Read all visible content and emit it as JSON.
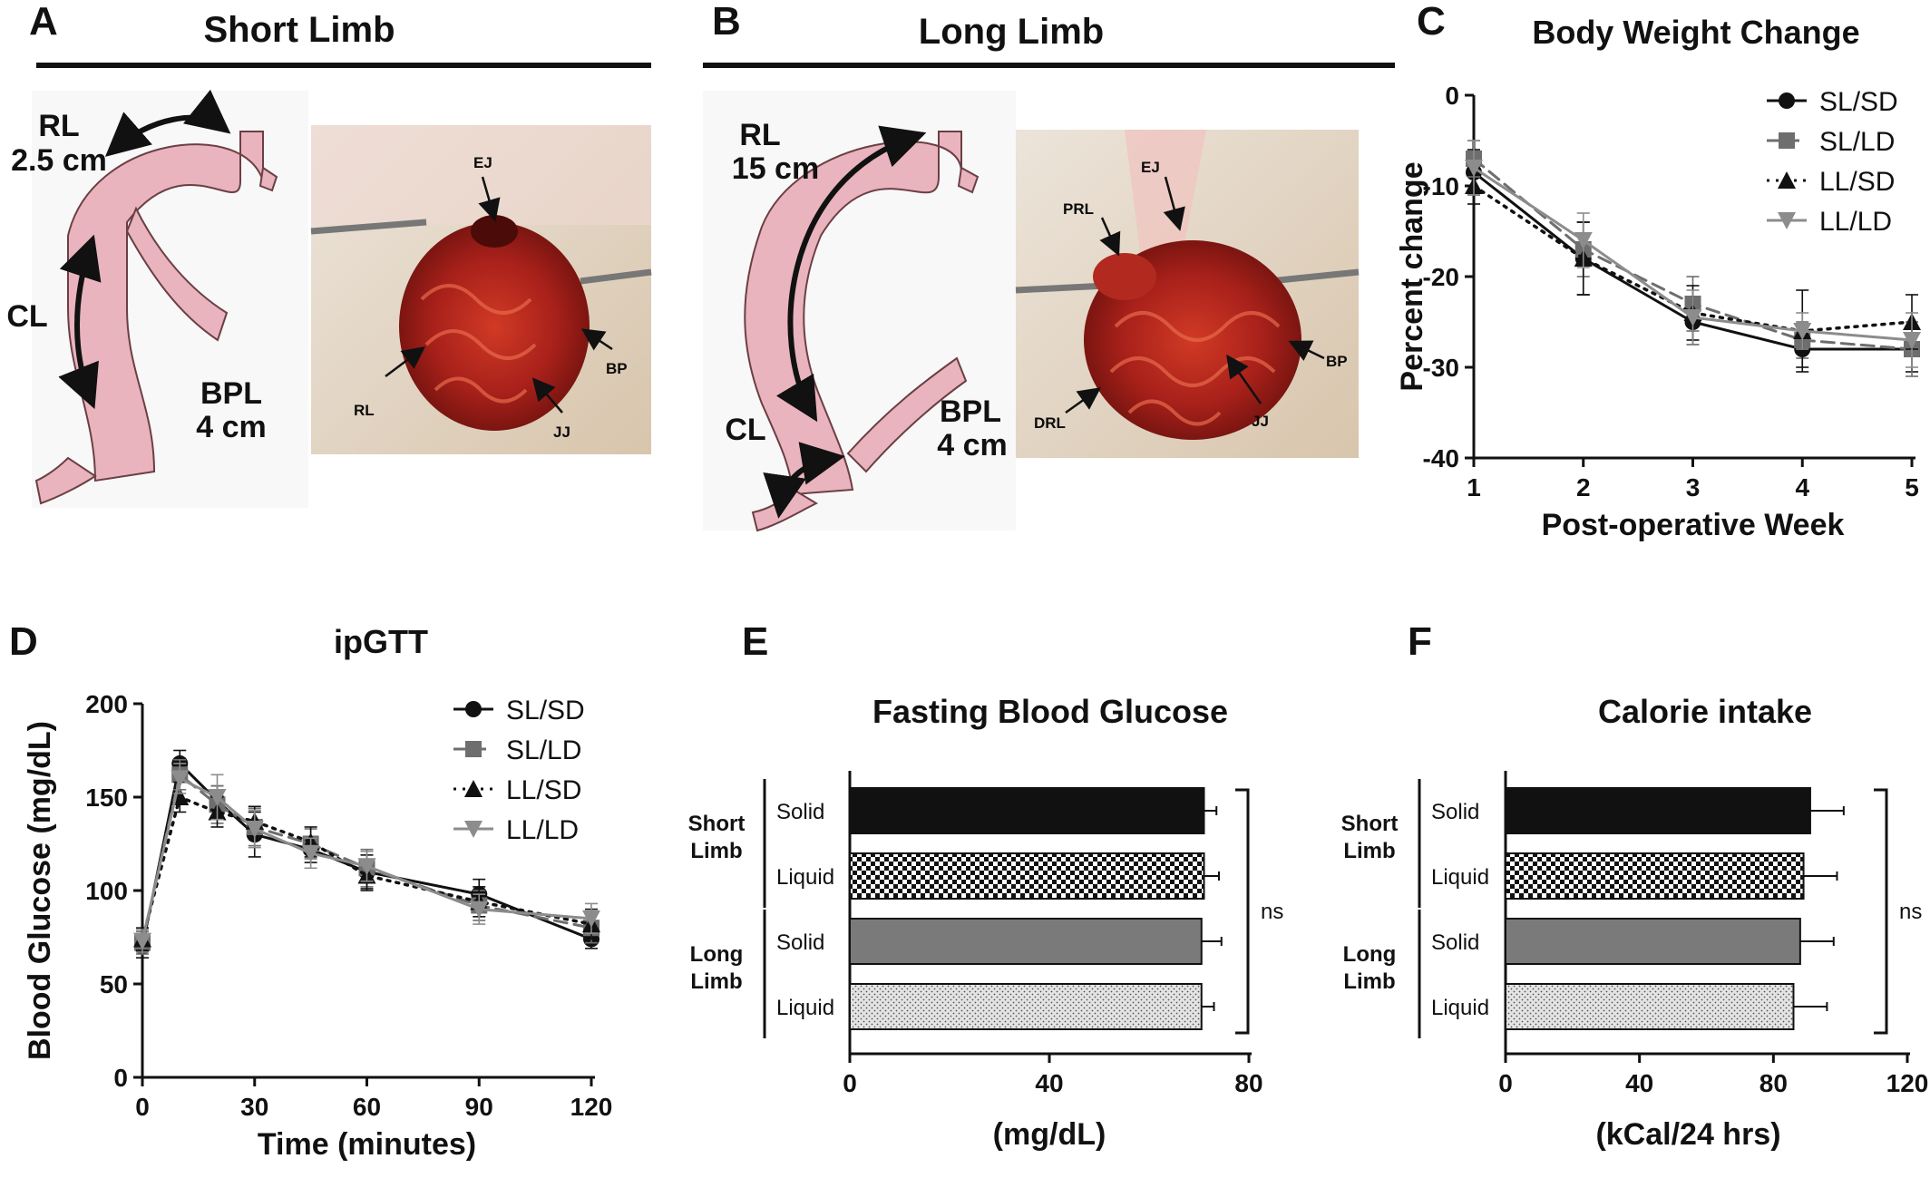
{
  "panels": {
    "A": {
      "letter": "A",
      "title": "Short Limb",
      "diagram_labels": {
        "rl": "RL",
        "rl_len": "2.5 cm",
        "cl": "CL",
        "bpl": "BPL",
        "bpl_len": "4 cm"
      },
      "photo_labels": {
        "ej": "EJ",
        "rl": "RL",
        "bp": "BP",
        "jj": "JJ"
      }
    },
    "B": {
      "letter": "B",
      "title": "Long Limb",
      "diagram_labels": {
        "rl": "RL",
        "rl_len": "15 cm",
        "cl": "CL",
        "bpl": "BPL",
        "bpl_len": "4 cm"
      },
      "photo_labels": {
        "ej": "EJ",
        "prl": "PRL",
        "bp": "BP",
        "jj": "JJ",
        "drl": "DRL"
      }
    },
    "C": {
      "letter": "C"
    },
    "D": {
      "letter": "D"
    },
    "E": {
      "letter": "E"
    },
    "F": {
      "letter": "F"
    }
  },
  "colors": {
    "black": "#111111",
    "gray": "#6e6e6e",
    "lightgray": "#8c8c8c",
    "tissue": "#b0231a",
    "pink": "#e9b4bd",
    "pinkOutline": "#6b3f44"
  },
  "chart_data": [
    {
      "id": "C",
      "type": "line",
      "title": "Body Weight Change",
      "xlabel": "Post-operative Week",
      "ylabel": "Percent change",
      "x": [
        1,
        2,
        3,
        4,
        5
      ],
      "xlim": [
        1,
        5
      ],
      "ylim": [
        -40,
        0
      ],
      "xticks": [
        "1",
        "2",
        "3",
        "4",
        "5"
      ],
      "yticks": [
        "0",
        "-10",
        "-20",
        "-30",
        "-40"
      ],
      "legend_position": "top-right",
      "series": [
        {
          "name": "SL/SD",
          "marker": "circle",
          "line": "solid",
          "color": "#111111",
          "values": [
            -8.5,
            -18,
            -25,
            -28,
            -28
          ],
          "errors": [
            2.5,
            4,
            2.5,
            2,
            2.5
          ]
        },
        {
          "name": "SL/LD",
          "marker": "square",
          "line": "dashed",
          "color": "#6e6e6e",
          "values": [
            -7,
            -17,
            -23,
            -27,
            -28
          ],
          "errors": [
            2,
            3,
            3,
            2,
            3
          ]
        },
        {
          "name": "LL/SD",
          "marker": "triangle-up",
          "line": "dotted",
          "color": "#111111",
          "values": [
            -10,
            -18,
            -24,
            -26,
            -25
          ],
          "errors": [
            2,
            4,
            3,
            4.5,
            3
          ]
        },
        {
          "name": "LL/LD",
          "marker": "triangle-down",
          "line": "solid",
          "color": "#8c8c8c",
          "values": [
            -8,
            -16,
            -24.5,
            -26,
            -27
          ],
          "errors": [
            3,
            3,
            3,
            2,
            3
          ]
        }
      ]
    },
    {
      "id": "D",
      "type": "line",
      "title": "ipGTT",
      "xlabel": "Time (minutes)",
      "ylabel": "Blood Glucose (mg/dL)",
      "x": [
        0,
        10,
        20,
        30,
        45,
        60,
        90,
        120
      ],
      "xlim": [
        0,
        120
      ],
      "ylim": [
        0,
        200
      ],
      "xticks": [
        "0",
        "30",
        "60",
        "90",
        "120"
      ],
      "yticks": [
        "0",
        "50",
        "100",
        "150",
        "200"
      ],
      "legend_position": "top-right",
      "series": [
        {
          "name": "SL/SD",
          "marker": "circle",
          "line": "solid",
          "color": "#111111",
          "values": [
            70,
            168,
            148,
            130,
            122,
            110,
            98,
            74
          ],
          "errors": [
            6,
            7,
            8,
            12,
            7,
            9,
            8,
            5
          ]
        },
        {
          "name": "SL/LD",
          "marker": "square",
          "line": "dashed",
          "color": "#6e6e6e",
          "values": [
            72,
            162,
            146,
            134,
            125,
            112,
            92,
            80
          ],
          "errors": [
            6,
            8,
            10,
            10,
            8,
            10,
            8,
            8
          ]
        },
        {
          "name": "LL/SD",
          "marker": "triangle-up",
          "line": "dotted",
          "color": "#111111",
          "values": [
            74,
            150,
            142,
            137,
            126,
            108,
            94,
            82
          ],
          "errors": [
            6,
            8,
            8,
            8,
            8,
            8,
            8,
            8
          ]
        },
        {
          "name": "LL/LD",
          "marker": "triangle-down",
          "line": "solid",
          "color": "#8c8c8c",
          "values": [
            73,
            160,
            150,
            133,
            120,
            113,
            90,
            85
          ],
          "errors": [
            6,
            8,
            12,
            10,
            8,
            8,
            8,
            8
          ]
        }
      ]
    },
    {
      "id": "E",
      "type": "bar",
      "orientation": "horizontal",
      "title": "Fasting Blood Glucose",
      "xlabel": "(mg/dL)",
      "xlim": [
        0,
        80
      ],
      "xticks": [
        "0",
        "40",
        "80"
      ],
      "groups": [
        "Short Limb",
        "Long Limb"
      ],
      "categories": [
        "Solid",
        "Liquid",
        "Solid",
        "Liquid"
      ],
      "values": [
        71,
        71,
        70.5,
        70.5
      ],
      "errors": [
        2.5,
        3,
        4,
        2.5
      ],
      "patterns": [
        "black",
        "checker",
        "gray",
        "dots"
      ],
      "annotation": "ns"
    },
    {
      "id": "F",
      "type": "bar",
      "orientation": "horizontal",
      "title": "Calorie intake",
      "xlabel": "(kCal/24 hrs)",
      "xlim": [
        0,
        120
      ],
      "xticks": [
        "0",
        "40",
        "80",
        "120"
      ],
      "groups": [
        "Short Limb",
        "Long Limb"
      ],
      "categories": [
        "Solid",
        "Liquid",
        "Solid",
        "Liquid"
      ],
      "values": [
        91,
        89,
        88,
        86
      ],
      "errors": [
        10,
        10,
        10,
        10
      ],
      "patterns": [
        "black",
        "checker",
        "gray",
        "dots"
      ],
      "annotation": "ns"
    }
  ]
}
